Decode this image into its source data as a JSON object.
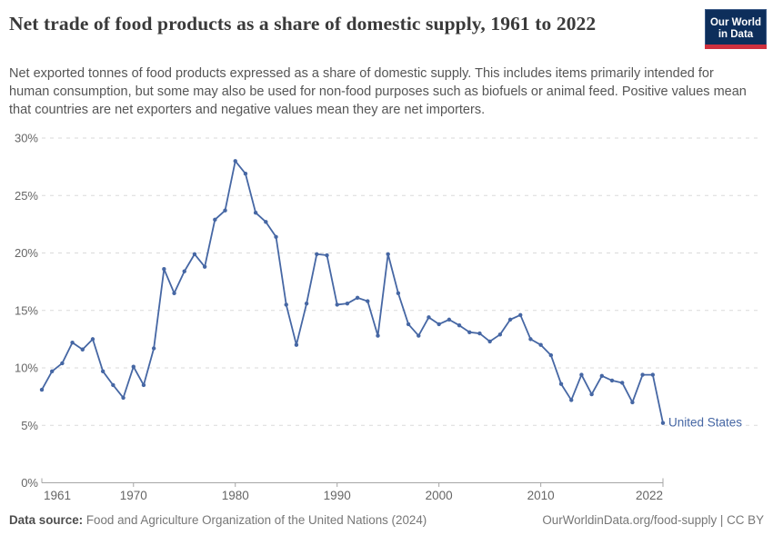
{
  "header": {
    "title": "Net trade of food products as a share of domestic supply, 1961 to 2022",
    "subtitle": "Net exported tonnes of food products expressed as a share of domestic supply. This includes items primarily intended for human consumption, but some may also be used for non-food purposes such as biofuels or animal feed. Positive values mean that countries are net exporters and negative values mean they are net importers."
  },
  "logo": {
    "line1": "Our World",
    "line2": "in Data",
    "bg_color": "#0d2e5b",
    "bar_color": "#cf303e"
  },
  "chart_data": {
    "type": "line",
    "title": "Net trade of food products as a share of domestic supply, 1961 to 2022",
    "x_start": 1961,
    "x_end": 2022,
    "ylim": [
      0,
      30
    ],
    "grid": "horizontal-dashed",
    "legend": "end-of-line-label",
    "y_ticks": [
      0,
      5,
      10,
      15,
      20,
      25,
      30
    ],
    "y_tick_labels": [
      "0%",
      "5%",
      "10%",
      "15%",
      "20%",
      "25%",
      "30%"
    ],
    "x_tick_years": [
      1961,
      1970,
      1980,
      1990,
      2000,
      2010,
      2022
    ],
    "x_tick_labels": [
      "1961",
      "1970",
      "1980",
      "1990",
      "2000",
      "2010",
      "2022"
    ],
    "series": [
      {
        "name": "United States",
        "color": "#4667a4",
        "values": [
          8.1,
          9.7,
          10.4,
          12.2,
          11.6,
          12.5,
          9.7,
          8.5,
          7.4,
          10.1,
          8.5,
          11.7,
          18.6,
          16.5,
          18.4,
          19.9,
          18.8,
          22.9,
          23.7,
          28.0,
          26.9,
          23.5,
          22.7,
          21.4,
          15.5,
          12.0,
          15.6,
          19.9,
          19.8,
          15.5,
          15.6,
          16.1,
          15.8,
          12.8,
          19.9,
          16.5,
          13.8,
          12.8,
          14.4,
          13.8,
          14.2,
          13.7,
          13.1,
          13.0,
          12.3,
          12.9,
          14.2,
          14.6,
          12.5,
          12.0,
          11.1,
          8.6,
          7.2,
          9.4,
          7.7,
          9.3,
          8.9,
          8.7,
          7.0,
          9.4,
          9.4,
          5.2
        ]
      }
    ]
  },
  "colors": {
    "gridline": "#dadada",
    "axis": "#a5a5a5",
    "tick_label": "#666666"
  },
  "footer": {
    "source_label": "Data source:",
    "source_text": " Food and Agriculture Organization of the United Nations (2024)",
    "right_text": "OurWorldinData.org/food-supply | CC BY"
  }
}
